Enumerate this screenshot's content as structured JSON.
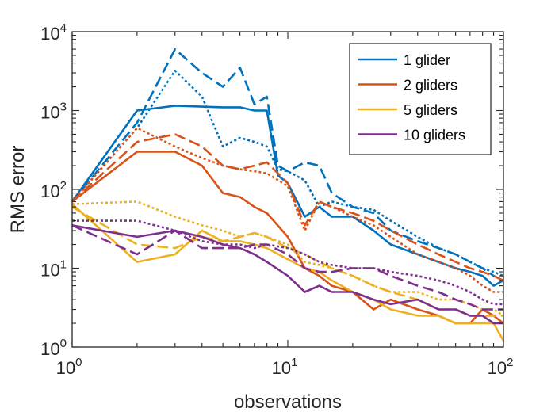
{
  "chart_data": {
    "type": "line",
    "xscale": "log",
    "yscale": "log",
    "xlim": [
      1,
      100
    ],
    "ylim": [
      1,
      10000
    ],
    "xlabel": "observations",
    "ylabel": "RMS error",
    "grid": false,
    "legend_position": "top-right",
    "x_ticks": [
      {
        "value": 1,
        "base": "10",
        "exp": "0"
      },
      {
        "value": 10,
        "base": "10",
        "exp": "1"
      },
      {
        "value": 100,
        "base": "10",
        "exp": "2"
      }
    ],
    "y_ticks": [
      {
        "value": 1,
        "base": "10",
        "exp": "0"
      },
      {
        "value": 10,
        "base": "10",
        "exp": "1"
      },
      {
        "value": 100,
        "base": "10",
        "exp": "2"
      },
      {
        "value": 1000,
        "base": "10",
        "exp": "3"
      },
      {
        "value": 10000,
        "base": "10",
        "exp": "4"
      }
    ],
    "line_styles": [
      "solid",
      "dashed",
      "dotted"
    ],
    "series": [
      {
        "name": "1 glider",
        "color": "#0072BD",
        "in_legend": true,
        "variants": [
          {
            "style": "solid",
            "x": [
              1,
              2,
              3,
              5,
              6,
              7,
              8,
              9,
              10,
              12,
              14,
              16,
              20,
              25,
              30,
              40,
              50,
              60,
              70,
              80,
              90,
              100
            ],
            "y": [
              70,
              1000,
              1150,
              1100,
              1100,
              1000,
              1000,
              150,
              120,
              45,
              60,
              45,
              45,
              30,
              20,
              15,
              12,
              10,
              9,
              8,
              6,
              7
            ]
          },
          {
            "style": "dashed",
            "x": [
              1,
              2,
              3,
              4,
              5,
              6,
              7,
              8,
              9,
              10,
              12,
              14,
              16,
              20,
              25,
              30,
              40,
              50,
              60,
              70,
              80,
              90,
              100
            ],
            "y": [
              70,
              700,
              6000,
              3000,
              2000,
              3500,
              1200,
              1500,
              200,
              170,
              220,
              200,
              90,
              60,
              50,
              30,
              22,
              18,
              15,
              12,
              10,
              8,
              7
            ]
          },
          {
            "style": "dotted",
            "x": [
              1,
              2,
              3,
              4,
              5,
              6,
              7,
              8,
              9,
              10,
              12,
              14,
              16,
              20,
              25,
              30,
              40,
              50,
              60,
              70,
              80,
              90,
              100
            ],
            "y": [
              70,
              600,
              3200,
              1500,
              350,
              450,
              400,
              350,
              180,
              170,
              130,
              60,
              70,
              60,
              55,
              40,
              25,
              18,
              15,
              12,
              10,
              9,
              8
            ]
          }
        ]
      },
      {
        "name": "2 gliders",
        "color": "#D95319",
        "in_legend": true,
        "variants": [
          {
            "style": "solid",
            "x": [
              1,
              2,
              3,
              4,
              5,
              6,
              7,
              8,
              10,
              12,
              14,
              16,
              20,
              25,
              30,
              40,
              50,
              60,
              70,
              80,
              90,
              100
            ],
            "y": [
              70,
              300,
              300,
              200,
              90,
              80,
              60,
              50,
              25,
              10,
              8,
              6,
              5,
              3,
              4,
              3,
              2.5,
              2,
              2,
              3,
              2.5,
              2
            ]
          },
          {
            "style": "dashed",
            "x": [
              1,
              2,
              3,
              4,
              5,
              6,
              7,
              8,
              10,
              12,
              14,
              16,
              20,
              25,
              30,
              40,
              50,
              60,
              70,
              80,
              90,
              100
            ],
            "y": [
              70,
              400,
              500,
              350,
              200,
              180,
              200,
              220,
              120,
              35,
              70,
              60,
              50,
              40,
              30,
              20,
              15,
              12,
              10,
              9,
              8,
              7
            ]
          },
          {
            "style": "dotted",
            "x": [
              1,
              2,
              3,
              4,
              5,
              6,
              7,
              8,
              10,
              12,
              14,
              16,
              20,
              25,
              30,
              40,
              50,
              60,
              70,
              80,
              90,
              100
            ],
            "y": [
              70,
              600,
              350,
              250,
              200,
              180,
              170,
              160,
              110,
              30,
              70,
              60,
              45,
              35,
              25,
              15,
              12,
              10,
              8,
              6,
              5,
              5
            ]
          }
        ]
      },
      {
        "name": "5 gliders",
        "color": "#EDB120",
        "in_legend": true,
        "variants": [
          {
            "style": "solid",
            "x": [
              1,
              2,
              3,
              4,
              5,
              6,
              7,
              8,
              10,
              12,
              14,
              16,
              20,
              25,
              30,
              40,
              50,
              60,
              70,
              80,
              90,
              100
            ],
            "y": [
              65,
              12,
              15,
              30,
              22,
              22,
              20,
              18,
              13,
              10,
              9,
              7,
              5,
              4,
              3,
              2.5,
              2.5,
              2,
              2,
              2,
              2,
              1.2
            ]
          },
          {
            "style": "dashed",
            "x": [
              1,
              2,
              3,
              4,
              5,
              6,
              7,
              8,
              10,
              12,
              14,
              16,
              20,
              25,
              30,
              40,
              50,
              60,
              70,
              80,
              90,
              100
            ],
            "y": [
              60,
              20,
              18,
              25,
              22,
              25,
              28,
              25,
              18,
              15,
              12,
              10,
              8,
              6,
              5,
              4,
              3,
              3,
              2.5,
              2.5,
              2.5,
              2.5
            ]
          },
          {
            "style": "dotted",
            "x": [
              1,
              2,
              3,
              4,
              5,
              6,
              7,
              8,
              10,
              12,
              14,
              16,
              20,
              25,
              30,
              40,
              50,
              60,
              70,
              80,
              90,
              100
            ],
            "y": [
              65,
              70,
              45,
              35,
              30,
              25,
              28,
              25,
              20,
              12,
              11,
              10,
              8,
              6,
              5,
              5,
              4,
              4,
              3.5,
              3,
              3,
              2.5
            ]
          }
        ]
      },
      {
        "name": "10 gliders",
        "color": "#7E2F8E",
        "in_legend": true,
        "variants": [
          {
            "style": "solid",
            "x": [
              1,
              2,
              3,
              4,
              5,
              6,
              7,
              8,
              10,
              12,
              14,
              16,
              20,
              25,
              30,
              40,
              50,
              60,
              70,
              80,
              90,
              100
            ],
            "y": [
              35,
              25,
              30,
              25,
              20,
              18,
              15,
              12,
              8,
              5,
              6,
              5,
              5,
              4,
              3.5,
              4,
              3,
              3,
              2.5,
              2.5,
              2,
              2
            ]
          },
          {
            "style": "dashed",
            "x": [
              1,
              2,
              3,
              4,
              5,
              6,
              7,
              8,
              10,
              12,
              14,
              16,
              20,
              25,
              30,
              40,
              50,
              60,
              70,
              80,
              90,
              100
            ],
            "y": [
              35,
              15,
              30,
              18,
              18,
              18,
              20,
              20,
              15,
              10,
              9,
              9,
              10,
              10,
              8,
              6,
              5,
              4,
              3.5,
              3,
              3,
              3
            ]
          },
          {
            "style": "dotted",
            "x": [
              1,
              2,
              3,
              4,
              5,
              6,
              7,
              8,
              10,
              12,
              14,
              16,
              20,
              25,
              30,
              40,
              50,
              60,
              70,
              80,
              90,
              100
            ],
            "y": [
              40,
              40,
              30,
              22,
              20,
              20,
              18,
              20,
              18,
              15,
              12,
              11,
              10,
              10,
              9,
              8,
              7,
              6,
              5,
              4,
              3.5,
              3.5
            ]
          }
        ]
      }
    ]
  }
}
